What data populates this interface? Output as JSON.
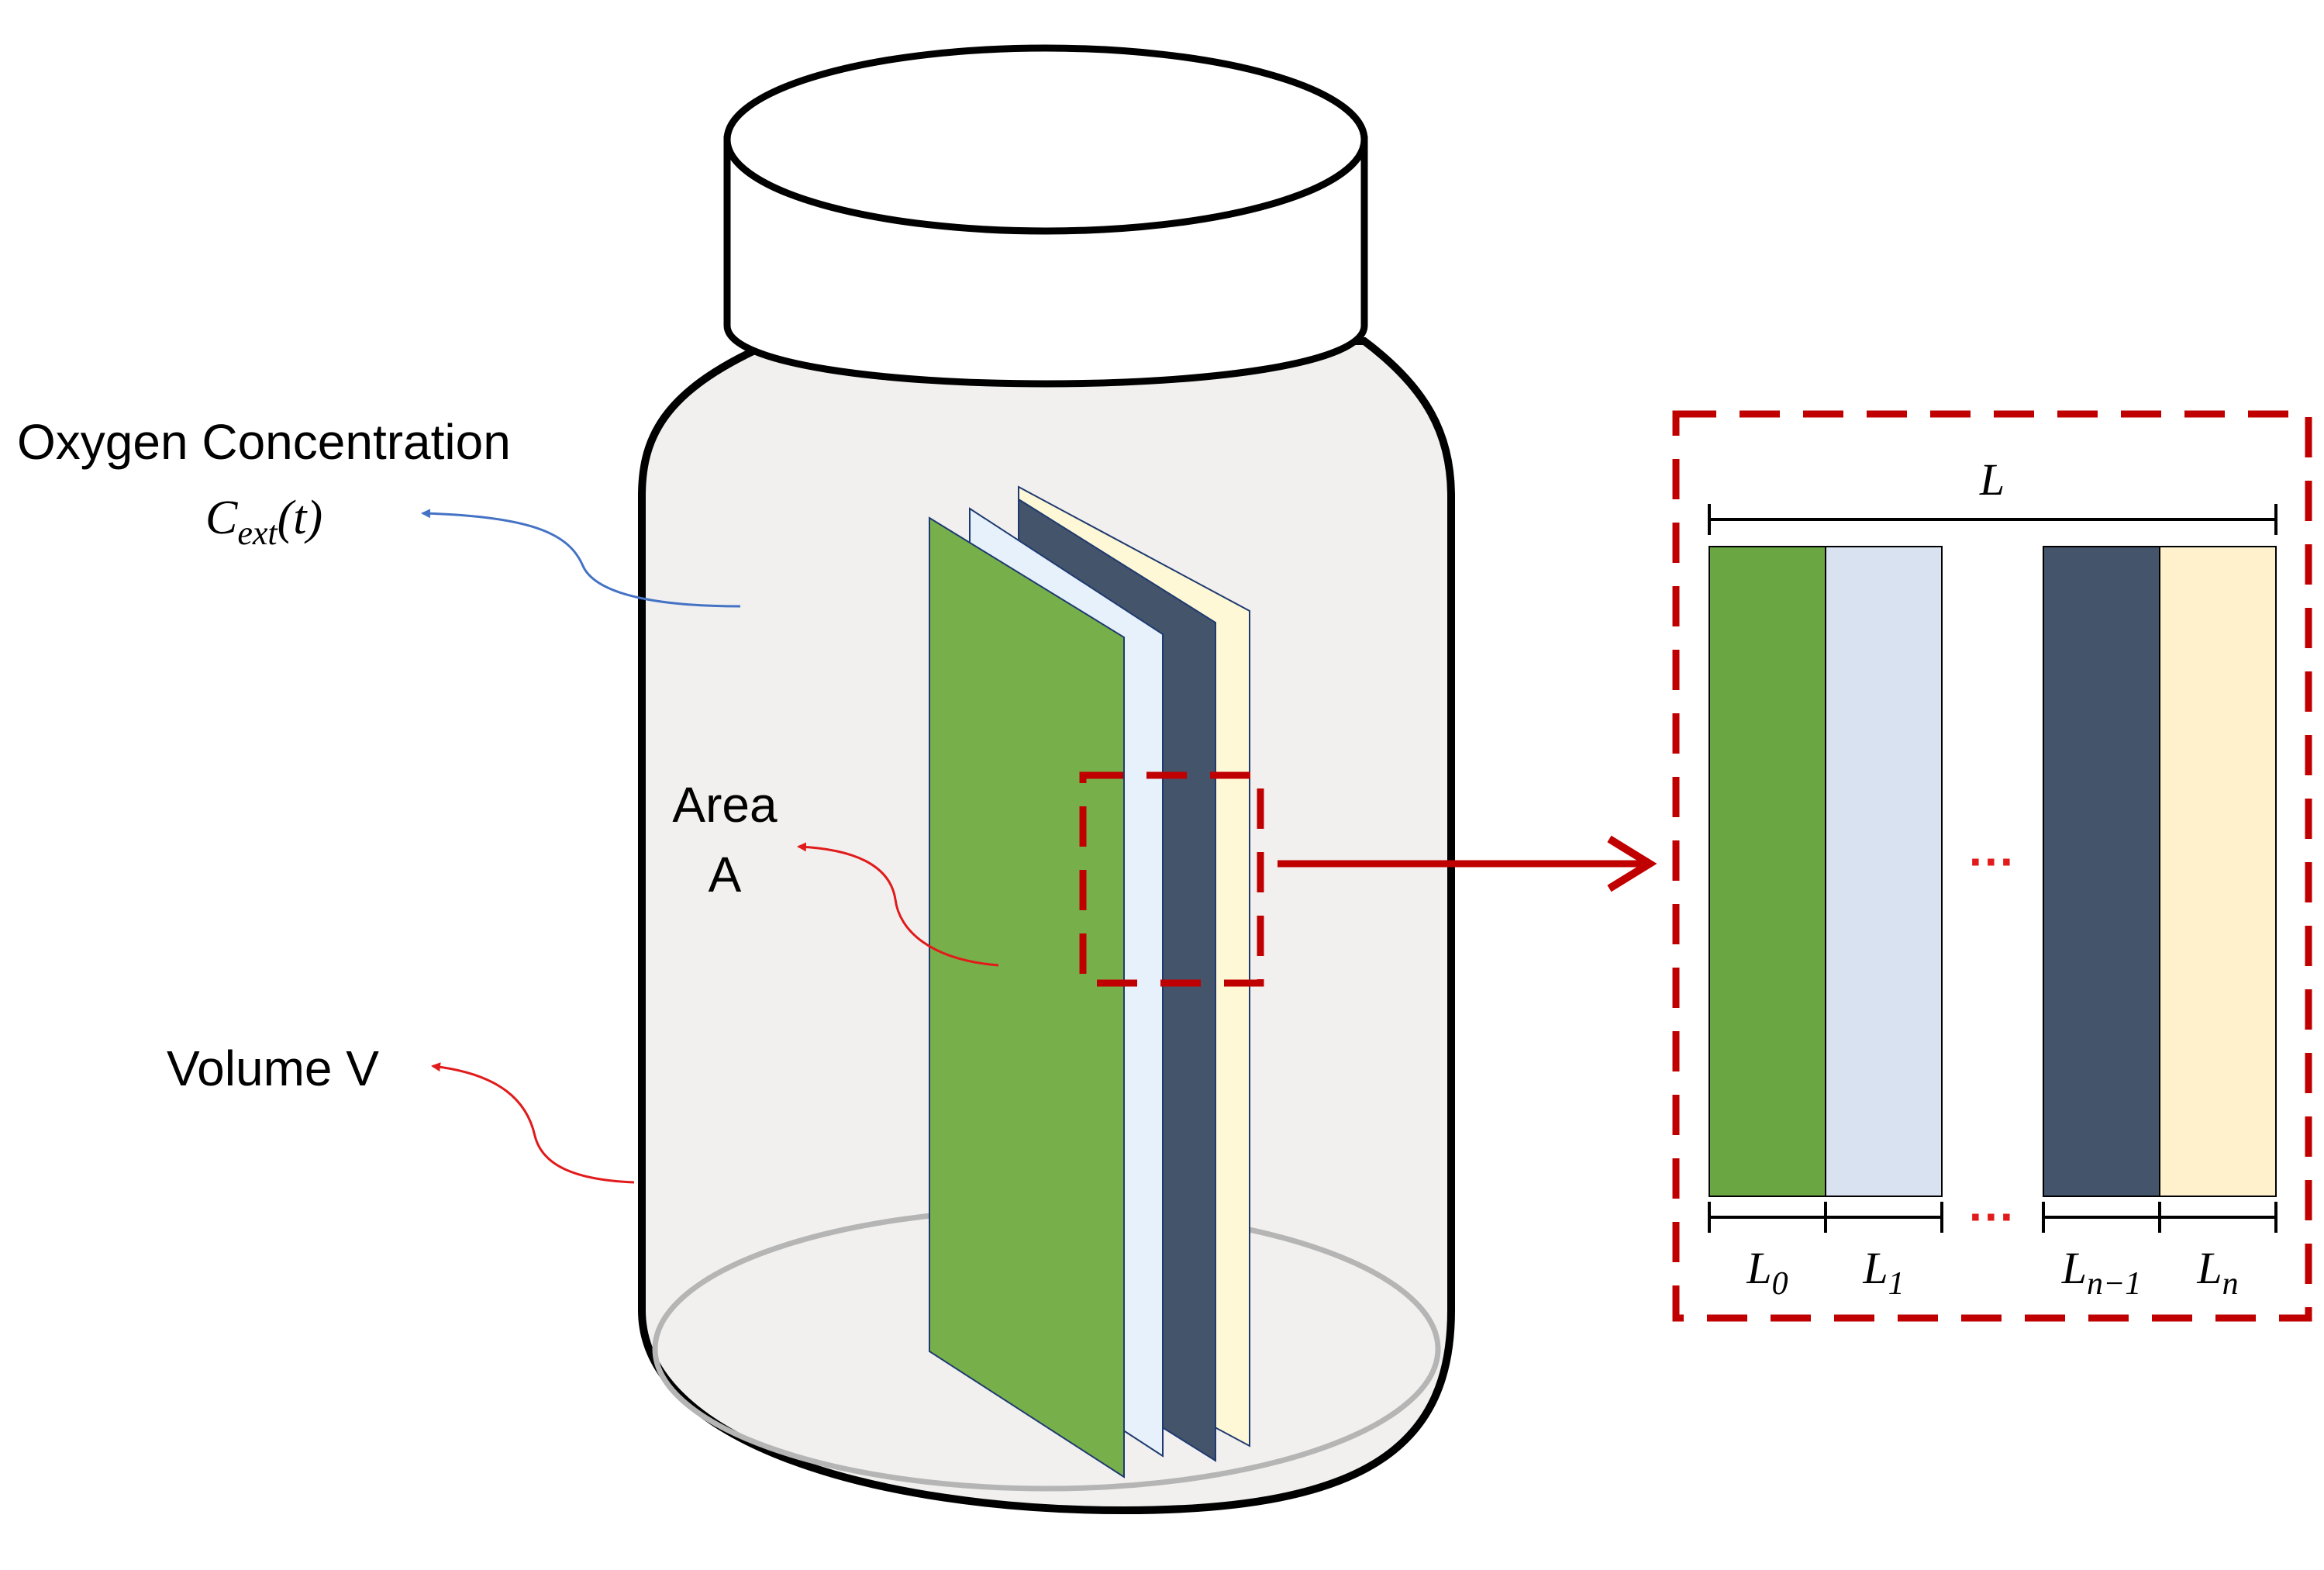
{
  "labels": {
    "oxygen_title": "Oxygen Concentration",
    "oxygen_symbol": "C",
    "oxygen_subscript": "ext",
    "oxygen_arg": "(t)",
    "area_line1": "Area",
    "area_line2": "A",
    "volume": "Volume V",
    "length_total": "L",
    "ellipsis_middle": "···",
    "ellipsis_bottom": "···",
    "layer_labels": [
      {
        "symbol": "L",
        "subscript": "0"
      },
      {
        "symbol": "L",
        "subscript": "1"
      },
      {
        "symbol": "L",
        "subscript": "n−1"
      },
      {
        "symbol": "L",
        "subscript": "n"
      }
    ]
  },
  "colors": {
    "layer_green": "#77b04a",
    "layer_lightblue": "#e6f1fb",
    "layer_navy": "#44546a",
    "layer_cream": "#fff8d6",
    "detail_green": "#6aa743",
    "detail_lightblue": "#d9e2f1",
    "detail_navy": "#44546a",
    "detail_cream": "#fff1cc",
    "zoom_red": "#c00000",
    "arrow_red": "#e11b1b",
    "arrow_blue": "#4472c4",
    "jar_fill": "#f1f0ef"
  }
}
